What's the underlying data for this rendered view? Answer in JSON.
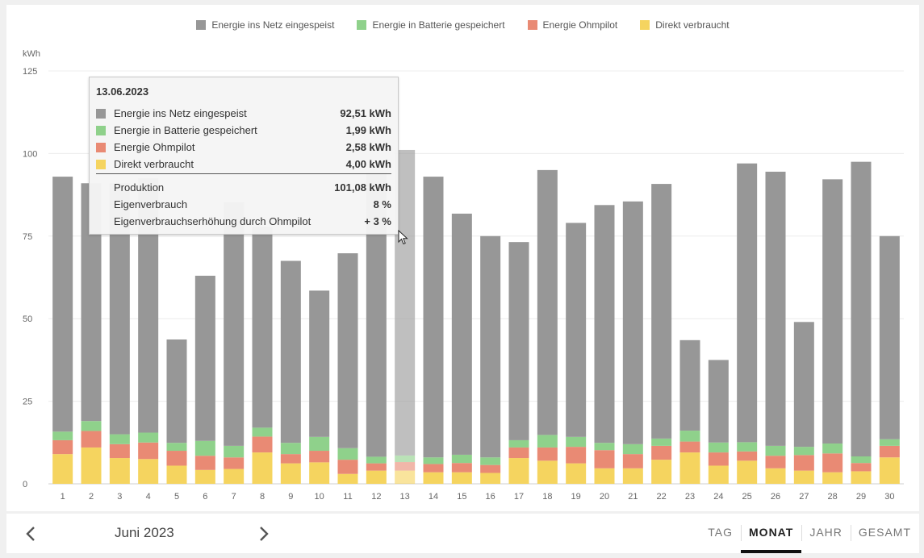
{
  "chart_data": {
    "type": "bar",
    "stacked": true,
    "unit_label": "kWh",
    "ylim": [
      0,
      125
    ],
    "yticks": [
      0,
      25,
      50,
      75,
      100,
      125
    ],
    "grid": true,
    "legend_position": "top-center",
    "categories": [
      "1",
      "2",
      "3",
      "4",
      "5",
      "6",
      "7",
      "8",
      "9",
      "10",
      "11",
      "12",
      "13",
      "14",
      "15",
      "16",
      "17",
      "18",
      "19",
      "20",
      "21",
      "22",
      "23",
      "24",
      "25",
      "26",
      "27",
      "28",
      "29",
      "30"
    ],
    "highlighted_index": 12,
    "series": [
      {
        "name": "Direkt verbraucht",
        "color": "#f5d45f",
        "values": [
          9,
          11,
          7.8,
          7.5,
          5.5,
          4.2,
          4.5,
          9.5,
          6.2,
          6.5,
          3,
          4,
          4,
          3.5,
          3.5,
          3.3,
          7.8,
          7,
          6.2,
          4.7,
          4.7,
          7.3,
          9.5,
          5.5,
          7,
          4.7,
          4,
          3.5,
          3.8,
          8
        ]
      },
      {
        "name": "Energie Ohmpilot",
        "color": "#e98a74",
        "values": [
          4.2,
          5,
          4.2,
          5,
          4.5,
          4.3,
          3.5,
          4.8,
          2.8,
          3.5,
          4.3,
          2.2,
          2.58,
          2.5,
          2.8,
          2.4,
          3.2,
          4,
          5,
          5.5,
          4.3,
          4.2,
          3.3,
          4,
          2.8,
          3.8,
          4.7,
          5.7,
          2.5,
          3.5
        ]
      },
      {
        "name": "Energie in Batterie gespeichert",
        "color": "#8fd18b",
        "values": [
          2.6,
          3,
          3,
          3,
          2.4,
          4.5,
          3.5,
          2.7,
          3.4,
          4.2,
          3.5,
          2,
          1.99,
          2,
          2.5,
          2.3,
          2.2,
          3.8,
          3,
          2.2,
          3,
          2.2,
          3.3,
          3,
          2.8,
          3,
          2.5,
          3,
          2,
          2
        ]
      },
      {
        "name": "Energie ins Netz eingespeist",
        "color": "#979797",
        "values": [
          77.2,
          72,
          76,
          77,
          31.3,
          50,
          73.8,
          60.8,
          55.1,
          44.3,
          59,
          86,
          92.51,
          85,
          73,
          67,
          60,
          80.2,
          64.8,
          72,
          73.5,
          77.1,
          27.4,
          25,
          84.4,
          83,
          37.8,
          80,
          89.2,
          61.5
        ]
      }
    ],
    "tooltip": {
      "date": "13.06.2023",
      "rows": [
        {
          "label": "Energie ins Netz eingespeist",
          "value": "92,51 kWh",
          "color": "#979797"
        },
        {
          "label": "Energie in Batterie gespeichert",
          "value": "1,99 kWh",
          "color": "#8fd18b"
        },
        {
          "label": "Energie Ohmpilot",
          "value": "2,58 kWh",
          "color": "#e98a74"
        },
        {
          "label": "Direkt verbraucht",
          "value": "4,00 kWh",
          "color": "#f5d45f"
        }
      ],
      "summary": [
        {
          "label": "Produktion",
          "value": "101,08 kWh"
        },
        {
          "label": "Eigenverbrauch",
          "value": "8 %"
        },
        {
          "label": "Eigenverbrauchserhöhung durch Ohmpilot",
          "value": "+ 3 %"
        }
      ]
    }
  },
  "legend": [
    {
      "label": "Energie ins Netz eingespeist",
      "color": "#979797"
    },
    {
      "label": "Energie in Batterie gespeichert",
      "color": "#8fd18b"
    },
    {
      "label": "Energie Ohmpilot",
      "color": "#e98a74"
    },
    {
      "label": "Direkt verbraucht",
      "color": "#f5d45f"
    }
  ],
  "footer": {
    "period_label": "Juni 2023",
    "prev_icon": "chevron-left-icon",
    "next_icon": "chevron-right-icon",
    "tabs": [
      {
        "label": "TAG",
        "active": false
      },
      {
        "label": "MONAT",
        "active": true
      },
      {
        "label": "JAHR",
        "active": false
      },
      {
        "label": "GESAMT",
        "active": false
      }
    ]
  }
}
